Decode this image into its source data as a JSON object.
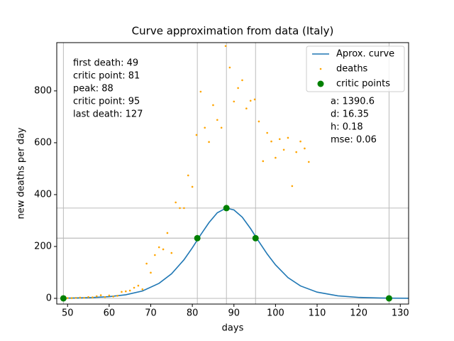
{
  "chart_data": {
    "type": "line",
    "title": "Curve approximation from data (Italy)",
    "xlabel": "days",
    "ylabel": "new deaths per day",
    "xlim": [
      47.4,
      132
    ],
    "ylim": [
      -22,
      986
    ],
    "xticks": [
      50,
      60,
      70,
      80,
      90,
      100,
      110,
      120,
      130
    ],
    "yticks": [
      0,
      200,
      400,
      600,
      800
    ],
    "legend": "upper right",
    "series": [
      {
        "name": "Aprox. curve",
        "kind": "line",
        "color": "#1f77b4",
        "x": [
          49,
          52,
          56,
          60,
          64,
          68,
          72,
          75,
          78,
          80,
          82,
          84,
          86,
          88,
          88.2,
          90,
          92,
          94,
          96,
          98,
          100,
          103,
          106,
          110,
          115,
          120,
          125,
          128,
          132
        ],
        "values": [
          0.8,
          1.5,
          3.1,
          6.5,
          13.8,
          28.4,
          58,
          94.6,
          149,
          195,
          245,
          292,
          330,
          347,
          348,
          341,
          313,
          269,
          219,
          171,
          129,
          80,
          48,
          24,
          9.6,
          3.7,
          1.5,
          0.8,
          0.4
        ]
      },
      {
        "name": "deaths",
        "kind": "scatter",
        "color": "#ffa500",
        "size": 1.3,
        "x": [
          49,
          50,
          51,
          52,
          53,
          54,
          55,
          56,
          57,
          58,
          59,
          60,
          61,
          62,
          63,
          64,
          65,
          66,
          67,
          68,
          69,
          70,
          71,
          72,
          73,
          74,
          75,
          76,
          77,
          78,
          79,
          80,
          81,
          82,
          83,
          84,
          85,
          86,
          87,
          88,
          89,
          90,
          91,
          92,
          93,
          94,
          95,
          96,
          97,
          98,
          99,
          100,
          101,
          102,
          103,
          104,
          105,
          106,
          107,
          108
        ],
        "values": [
          0,
          1,
          1,
          2,
          3,
          2,
          5,
          4,
          8,
          12,
          5,
          11,
          7,
          10,
          25,
          27,
          30,
          41,
          49,
          35,
          134,
          99,
          167,
          197,
          189,
          252,
          175,
          370,
          348,
          348,
          474,
          430,
          630,
          797,
          658,
          603,
          745,
          688,
          658,
          973,
          890,
          759,
          811,
          841,
          732,
          762,
          767,
          682,
          529,
          638,
          605,
          542,
          614,
          573,
          619,
          433,
          564,
          605,
          578,
          526
        ]
      },
      {
        "name": "critic points",
        "kind": "scatter",
        "color": "#008000",
        "size": 4.5,
        "x": [
          49,
          81.2,
          88.2,
          95.2,
          127.3
        ],
        "values": [
          0,
          232,
          348,
          232,
          0
        ]
      }
    ],
    "annotations_left": [
      "first death: 49",
      "critic point: 81",
      "peak: 88",
      "critic point: 95",
      "last death: 127"
    ],
    "annotations_right": [
      "a: 1390.6",
      "d: 16.35",
      "h: 0.18",
      "mse: 0.06"
    ]
  }
}
